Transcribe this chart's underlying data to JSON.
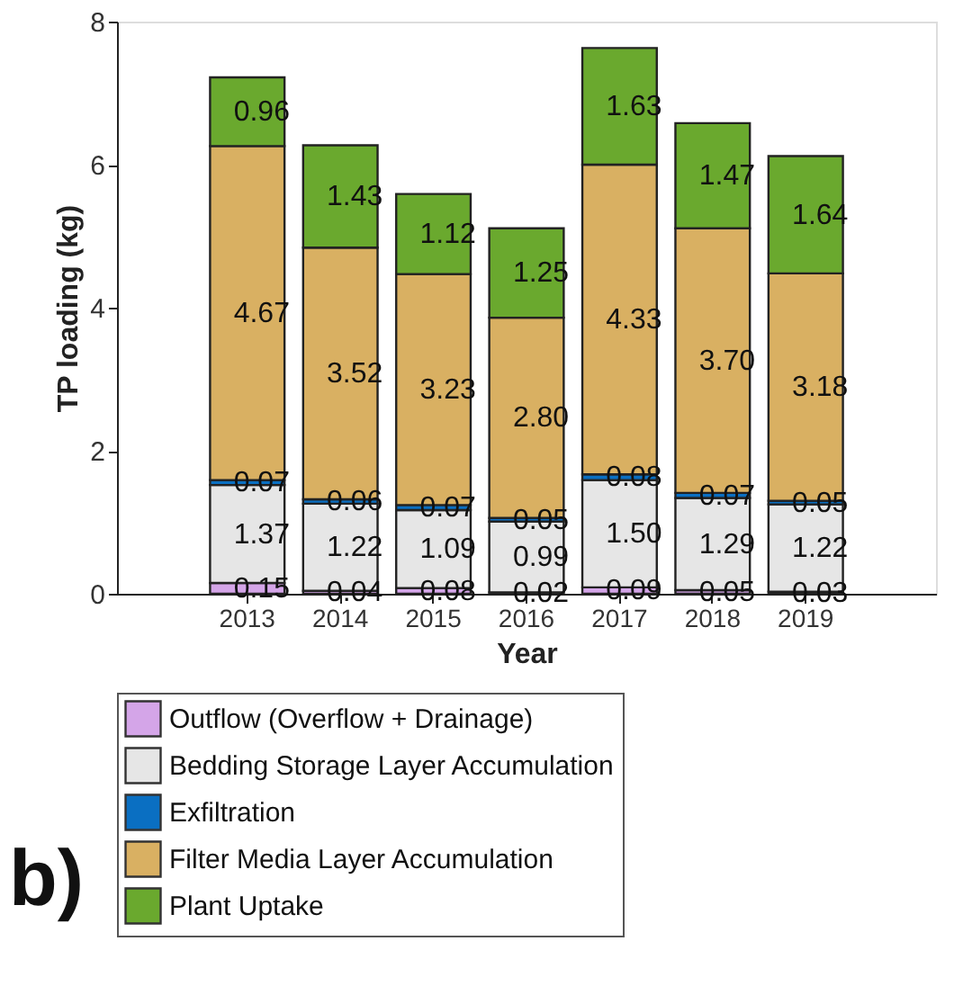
{
  "chart_data": {
    "type": "bar",
    "stacked": true,
    "xlabel": "Year",
    "ylabel": "TP loading (kg)",
    "categories": [
      "2013",
      "2014",
      "2015",
      "2016",
      "2017",
      "2018",
      "2019"
    ],
    "ylim": [
      0,
      8
    ],
    "yticks": [
      0,
      2,
      4,
      6,
      8
    ],
    "grid": false,
    "legend": "bottom",
    "series": [
      {
        "name": "Outflow (Overflow + Drainage)",
        "color": "#d4a5e8",
        "values": [
          0.15,
          0.04,
          0.08,
          0.02,
          0.09,
          0.05,
          0.03
        ],
        "value_labels": [
          "0.15",
          "0.04",
          "0.08",
          "0.02",
          "0.09",
          "0.05",
          "0.03"
        ]
      },
      {
        "name": "Bedding Storage Layer Accumulation",
        "color": "#e6e6e6",
        "values": [
          1.37,
          1.22,
          1.09,
          0.99,
          1.5,
          1.29,
          1.22
        ],
        "value_labels": [
          "1.37",
          "1.22",
          "1.09",
          "0.99",
          "1.50",
          "1.29",
          "1.22"
        ]
      },
      {
        "name": "Exfiltration",
        "color": "#0a6fc2",
        "values": [
          0.07,
          0.06,
          0.07,
          0.05,
          0.08,
          0.07,
          0.05
        ],
        "value_labels": [
          "0.07",
          "0.06",
          "0.07",
          "0.05",
          "0.08",
          "0.07",
          "0.05"
        ]
      },
      {
        "name": "Filter Media Layer Accumulation",
        "color": "#d9b062",
        "values": [
          4.67,
          3.52,
          3.23,
          2.8,
          4.33,
          3.7,
          3.18
        ],
        "value_labels": [
          "4.67",
          "3.52",
          "3.23",
          "2.80",
          "4.33",
          "3.70",
          "3.18"
        ]
      },
      {
        "name": "Plant Uptake",
        "color": "#6aa92e",
        "values": [
          0.96,
          1.43,
          1.12,
          1.25,
          1.63,
          1.47,
          1.64
        ],
        "value_labels": [
          "0.96",
          "1.43",
          "1.12",
          "1.25",
          "1.63",
          "1.47",
          "1.64"
        ]
      }
    ],
    "annotations": [
      "b)"
    ]
  }
}
